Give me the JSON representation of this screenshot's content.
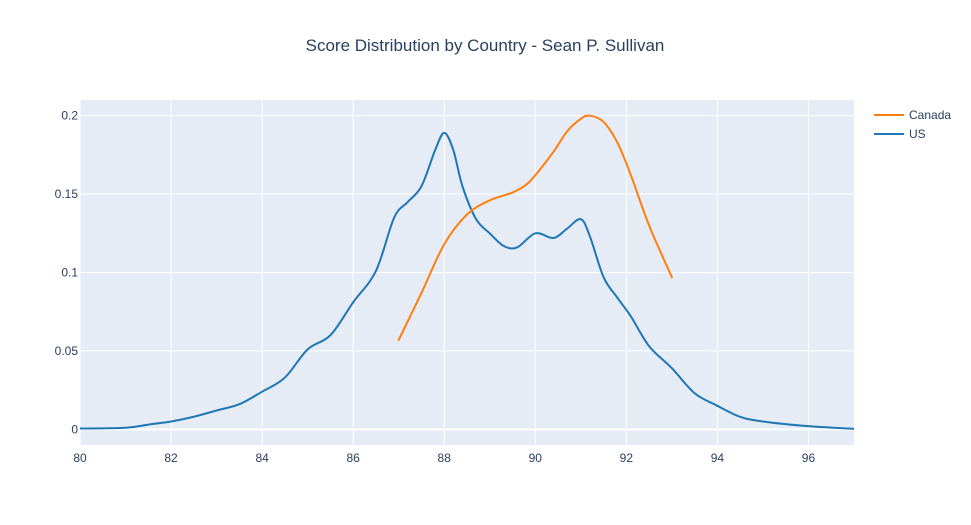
{
  "chart_data": {
    "type": "line",
    "title": "Score Distribution by Country - Sean P. Sullivan",
    "xlabel": "",
    "ylabel": "",
    "xlim": [
      80,
      97
    ],
    "ylim": [
      -0.01,
      0.21
    ],
    "xticks": [
      80,
      82,
      84,
      86,
      88,
      90,
      92,
      94,
      96
    ],
    "xtick_labels": [
      "80",
      "82",
      "84",
      "86",
      "88",
      "90",
      "92",
      "94",
      "96"
    ],
    "yticks": [
      0,
      0.05,
      0.1,
      0.15,
      0.2
    ],
    "ytick_labels": [
      "0",
      "0.05",
      "0.1",
      "0.15",
      "0.2"
    ],
    "grid": true,
    "legend_position": "top-right",
    "plot_bg": "#e5ecf6",
    "series": [
      {
        "name": "Canada",
        "color": "#ff7f0e",
        "x": [
          87.0,
          87.5,
          88.0,
          88.5,
          89.0,
          89.5,
          89.8,
          90.0,
          90.4,
          90.7,
          91.0,
          91.2,
          91.5,
          91.8,
          92.1,
          92.5,
          93.0
        ],
        "y": [
          0.057,
          0.087,
          0.118,
          0.137,
          0.146,
          0.151,
          0.156,
          0.162,
          0.177,
          0.19,
          0.198,
          0.2,
          0.196,
          0.183,
          0.162,
          0.13,
          0.097
        ]
      },
      {
        "name": "US",
        "color": "#1f77b4",
        "x": [
          80.0,
          81.0,
          81.5,
          82.0,
          82.5,
          83.0,
          83.5,
          84.0,
          84.5,
          85.0,
          85.5,
          86.0,
          86.5,
          86.9,
          87.2,
          87.5,
          87.8,
          88.0,
          88.2,
          88.4,
          88.7,
          89.0,
          89.3,
          89.6,
          90.0,
          90.4,
          90.7,
          91.0,
          91.2,
          91.5,
          91.8,
          92.1,
          92.5,
          93.0,
          93.5,
          94.0,
          94.5,
          95.0,
          96.0,
          97.0
        ],
        "y": [
          0.0005,
          0.001,
          0.003,
          0.005,
          0.008,
          0.012,
          0.016,
          0.024,
          0.033,
          0.051,
          0.06,
          0.081,
          0.101,
          0.135,
          0.145,
          0.155,
          0.178,
          0.189,
          0.178,
          0.155,
          0.134,
          0.125,
          0.117,
          0.116,
          0.125,
          0.122,
          0.128,
          0.134,
          0.123,
          0.097,
          0.084,
          0.072,
          0.053,
          0.039,
          0.023,
          0.015,
          0.008,
          0.005,
          0.002,
          0.0003
        ]
      }
    ]
  }
}
